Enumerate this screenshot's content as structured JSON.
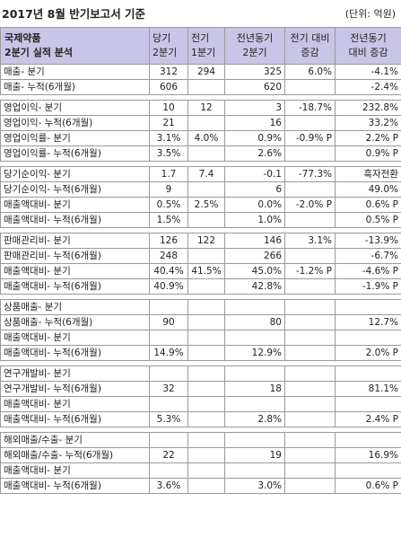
{
  "header": {
    "title": "2017년 8월 반기보고서 기준",
    "unit": "(단위: 억원)"
  },
  "columns": {
    "company": [
      "국제약품",
      "2분기 실적 분석"
    ],
    "c1": [
      "당기",
      "2분기"
    ],
    "c2": [
      "전기",
      "1분기"
    ],
    "c3": [
      "전년동기",
      "2분기"
    ],
    "c4": [
      "전기 대비",
      "증감"
    ],
    "c5": [
      "전년동기",
      "대비 증감"
    ]
  },
  "sections": [
    {
      "rows": [
        [
          "매출- 분기",
          "312",
          "294",
          "325",
          "6.0%",
          "-4.1%"
        ],
        [
          "매출- 누적(6개월)",
          "606",
          "",
          "620",
          "",
          "-2.4%"
        ]
      ]
    },
    {
      "rows": [
        [
          "영업이익- 분기",
          "10",
          "12",
          "3",
          "-18.7%",
          "232.8%"
        ],
        [
          "영업이익- 누적(6개월)",
          "21",
          "",
          "16",
          "",
          "33.2%"
        ],
        [
          "영업이익률- 분기",
          "3.1%",
          "4.0%",
          "0.9%",
          "-0.9% P",
          "2.2% P"
        ],
        [
          "영업이익률- 누적(6개월)",
          "3.5%",
          "",
          "2.6%",
          "",
          "0.9% P"
        ]
      ]
    },
    {
      "rows": [
        [
          "당기순이익- 분기",
          "1.7",
          "7.4",
          "-0.1",
          "-77.3%",
          "흑자전환"
        ],
        [
          "당기순이익- 누적(6개월)",
          "9",
          "",
          "6",
          "",
          "49.0%"
        ],
        [
          "매출액대비- 분기",
          "0.5%",
          "2.5%",
          "0.0%",
          "-2.0% P",
          "0.6% P"
        ],
        [
          "매출액대비- 누적(6개월)",
          "1.5%",
          "",
          "1.0%",
          "",
          "0.5% P"
        ]
      ]
    },
    {
      "rows": [
        [
          "판매관리비- 분기",
          "126",
          "122",
          "146",
          "3.1%",
          "-13.9%"
        ],
        [
          "판매관리비- 누적(6개월)",
          "248",
          "",
          "266",
          "",
          "-6.7%"
        ],
        [
          "매출액대비- 분기",
          "40.4%",
          "41.5%",
          "45.0%",
          "-1.2% P",
          "-4.6% P"
        ],
        [
          "매출액대비- 누적(6개월)",
          "40.9%",
          "",
          "42.8%",
          "",
          "-1.9% P"
        ]
      ]
    },
    {
      "rows": [
        [
          "상품매출- 분기",
          "",
          "",
          "",
          "",
          ""
        ],
        [
          "상품매출- 누적(6개월)",
          "90",
          "",
          "80",
          "",
          "12.7%"
        ],
        [
          "매출액대비- 분기",
          "",
          "",
          "",
          "",
          ""
        ],
        [
          "매출액대비- 누적(6개월)",
          "14.9%",
          "",
          "12.9%",
          "",
          "2.0% P"
        ]
      ]
    },
    {
      "rows": [
        [
          "연구개발비- 분기",
          "",
          "",
          "",
          "",
          ""
        ],
        [
          "연구개발비- 누적(6개월)",
          "32",
          "",
          "18",
          "",
          "81.1%"
        ],
        [
          "매출액대비- 분기",
          "",
          "",
          "",
          "",
          ""
        ],
        [
          "매출액대비- 누적(6개월)",
          "5.3%",
          "",
          "2.8%",
          "",
          "2.4% P"
        ]
      ]
    },
    {
      "rows": [
        [
          "해외매출/수출- 분기",
          "",
          "",
          "",
          "",
          ""
        ],
        [
          "해외매출/수출- 누적(6개월)",
          "22",
          "",
          "19",
          "",
          "16.9%"
        ],
        [
          "매출액대비- 분기",
          "",
          "",
          "",
          "",
          ""
        ],
        [
          "매출액대비- 누적(6개월)",
          "3.6%",
          "",
          "3.0%",
          "",
          "0.6% P"
        ]
      ]
    }
  ]
}
